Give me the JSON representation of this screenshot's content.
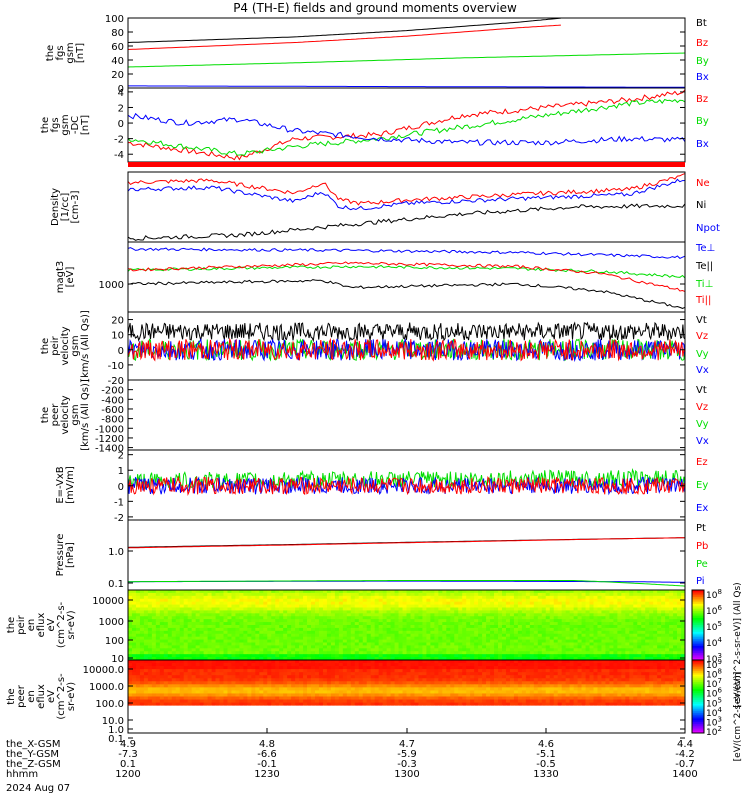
{
  "title": "P4 (TH-E) fields and ground moments overview",
  "colors": {
    "black": "#000000",
    "red": "#ff0000",
    "green": "#00dd00",
    "blue": "#0000ff"
  },
  "chart_data": [
    {
      "type": "line",
      "id": "fgs_gsm",
      "ylabel": [
        "the",
        "fgs",
        "gsm",
        "[nT]"
      ],
      "ylim": [
        0,
        100
      ],
      "yticks": [
        "100",
        "80",
        "60",
        "40",
        "20",
        "0"
      ],
      "legend": [
        "Bt",
        "Bz",
        "By",
        "Bx"
      ],
      "series": [
        {
          "name": "Bt",
          "color": "black",
          "x": [
            0,
            0.3,
            0.5,
            0.7,
            0.78
          ],
          "values": [
            65,
            73,
            82,
            94,
            100
          ]
        },
        {
          "name": "Bz",
          "color": "red",
          "x": [
            0,
            0.3,
            0.5,
            0.7,
            0.78
          ],
          "values": [
            55,
            65,
            74,
            86,
            90
          ]
        },
        {
          "name": "By",
          "color": "green",
          "x": [
            0,
            0.3,
            0.6,
            1.0
          ],
          "values": [
            30,
            36,
            43,
            50
          ]
        },
        {
          "name": "Bx",
          "color": "blue",
          "x": [
            0,
            1.0
          ],
          "values": [
            3,
            1
          ]
        }
      ]
    },
    {
      "type": "line",
      "id": "fgs_gsm_dc",
      "ylabel": [
        "the",
        "fgs",
        "gsm",
        "-DC",
        "[nT]"
      ],
      "ylim": [
        -5,
        4.5
      ],
      "yticks": [
        "4",
        "2",
        "0",
        "-2",
        "-4"
      ],
      "legend": [
        "Bz",
        "By",
        "Bx"
      ],
      "series": [
        {
          "name": "Bz",
          "color": "red",
          "x": [
            0,
            0.15,
            0.2,
            0.3,
            0.45,
            0.6,
            0.75,
            0.9,
            1.0
          ],
          "values": [
            -2.5,
            -4,
            -4.5,
            -2,
            -1.5,
            1,
            2,
            3,
            4
          ]
        },
        {
          "name": "By",
          "color": "green",
          "x": [
            0,
            0.15,
            0.2,
            0.3,
            0.45,
            0.6,
            0.75,
            0.9,
            1.0
          ],
          "values": [
            -2,
            -3.5,
            -4,
            -3,
            -2,
            -0.5,
            1,
            2.5,
            3
          ]
        },
        {
          "name": "Bx",
          "color": "blue",
          "x": [
            0,
            0.1,
            0.2,
            0.3,
            0.45,
            0.6,
            0.75,
            0.9,
            1.0
          ],
          "values": [
            1,
            0,
            0.5,
            -1,
            -2,
            -2.5,
            -2.5,
            -2,
            -2.2
          ]
        }
      ]
    },
    {
      "type": "line",
      "id": "density",
      "ylabel": [
        "Density",
        "[1/cc]",
        "[cm-3]"
      ],
      "yticks": [],
      "legend": [
        "Ne",
        "Ni",
        "Npot"
      ],
      "series": [
        {
          "name": "Ne",
          "color": "red",
          "x": [
            0,
            0.15,
            0.3,
            0.35,
            0.38,
            0.42,
            0.5,
            0.7,
            0.9,
            1.0
          ],
          "values": [
            0.85,
            0.88,
            0.7,
            0.85,
            0.6,
            0.55,
            0.6,
            0.68,
            0.75,
            0.95
          ]
        },
        {
          "name": "Ni",
          "color": "blue",
          "x": [
            0,
            0.15,
            0.3,
            0.35,
            0.38,
            0.42,
            0.5,
            0.7,
            0.9,
            1.0
          ],
          "values": [
            0.75,
            0.78,
            0.58,
            0.72,
            0.5,
            0.48,
            0.55,
            0.62,
            0.68,
            0.9
          ]
        },
        {
          "name": "Npot",
          "color": "black",
          "x": [
            0,
            0.2,
            0.4,
            0.6,
            0.8,
            1.0
          ],
          "values": [
            0.05,
            0.1,
            0.25,
            0.4,
            0.5,
            0.52
          ]
        }
      ]
    },
    {
      "type": "line",
      "id": "temperature",
      "ylabel": [
        "magt3",
        "[eV]"
      ],
      "yticks": [
        "1000"
      ],
      "legend": [
        "Te⊥",
        "Te||",
        "Ti⊥",
        "Ti||"
      ],
      "series": [
        {
          "name": "Te⊥",
          "color": "blue",
          "x": [
            0,
            0.4,
            0.7,
            1.0
          ],
          "values": [
            0.9,
            0.88,
            0.85,
            0.78
          ]
        },
        {
          "name": "Ti⊥",
          "color": "green",
          "x": [
            0,
            0.4,
            0.7,
            0.85,
            1.0
          ],
          "values": [
            0.6,
            0.65,
            0.62,
            0.58,
            0.5
          ]
        },
        {
          "name": "Ti||",
          "color": "red",
          "x": [
            0,
            0.4,
            0.7,
            0.85,
            1.0
          ],
          "values": [
            0.6,
            0.7,
            0.65,
            0.55,
            0.3
          ]
        },
        {
          "name": "Te||",
          "color": "black",
          "x": [
            0,
            0.35,
            0.4,
            0.7,
            0.85,
            1.0
          ],
          "values": [
            0.4,
            0.45,
            0.35,
            0.4,
            0.3,
            0.05
          ]
        }
      ]
    },
    {
      "type": "line",
      "id": "peir_velocity",
      "ylabel": [
        "the",
        "peir",
        "velocity",
        "gsm",
        "[km/s (All Qs)]"
      ],
      "ylim": [
        -20,
        25
      ],
      "yticks": [
        "20",
        "10",
        "0",
        "-10",
        "-20"
      ],
      "legend": [
        "Vt",
        "Vz",
        "Vy",
        "Vx"
      ],
      "series": [
        {
          "name": "Vt",
          "color": "black",
          "x": [
            0,
            1.0
          ],
          "values": [
            12,
            12
          ]
        },
        {
          "name": "Vy",
          "color": "green",
          "x": [
            0,
            1.0
          ],
          "values": [
            0,
            0
          ]
        },
        {
          "name": "Vx",
          "color": "blue",
          "x": [
            0,
            1.0
          ],
          "values": [
            0,
            0
          ]
        },
        {
          "name": "Vz",
          "color": "red",
          "x": [
            0,
            1.0
          ],
          "values": [
            0,
            0
          ]
        }
      ]
    },
    {
      "type": "line",
      "id": "peer_velocity",
      "ylabel": [
        "the",
        "peer",
        "velocity",
        "gsm",
        "[km/s (All Qs)]"
      ],
      "ylim": [
        -1450,
        0
      ],
      "yticks": [
        "-200",
        "-400",
        "-600",
        "-800",
        "-1000",
        "-1200",
        "-1400"
      ],
      "legend": [
        "Vt",
        "Vz",
        "Vy",
        "Vx"
      ],
      "series": []
    },
    {
      "type": "line",
      "id": "e_vxb",
      "ylabel": [
        "E=-VxB",
        "[mV/m]"
      ],
      "ylim": [
        -2.2,
        2.3
      ],
      "yticks": [
        "2",
        "1",
        "0",
        "-1",
        "-2"
      ],
      "legend": [
        "Ez",
        "Ey",
        "Ex"
      ],
      "series": [
        {
          "name": "Ey",
          "color": "green",
          "x": [
            0,
            1.0
          ],
          "values": [
            0.3,
            0.5
          ]
        },
        {
          "name": "Ex",
          "color": "blue",
          "x": [
            0,
            1.0
          ],
          "values": [
            0,
            0
          ]
        },
        {
          "name": "Ez",
          "color": "red",
          "x": [
            0,
            1.0
          ],
          "values": [
            0,
            0
          ]
        }
      ]
    },
    {
      "type": "line",
      "id": "pressure",
      "ylabel": [
        "Pressure",
        "[nPa]"
      ],
      "yticks": [
        "1.0",
        "0.1"
      ],
      "legend": [
        "Pt",
        "Pb",
        "Pe",
        "Pi"
      ],
      "series": [
        {
          "name": "Pt",
          "color": "black",
          "x": [
            0,
            0.3,
            0.6,
            1.0
          ],
          "values": [
            1.3,
            1.6,
            2.0,
            2.6
          ]
        },
        {
          "name": "Pb",
          "color": "red",
          "x": [
            0,
            0.3,
            0.6,
            1.0
          ],
          "values": [
            1.25,
            1.55,
            1.95,
            2.6
          ]
        },
        {
          "name": "Pi",
          "color": "blue",
          "x": [
            0,
            0.5,
            0.9,
            1.0
          ],
          "values": [
            0.11,
            0.115,
            0.11,
            0.105
          ]
        },
        {
          "name": "Pe",
          "color": "green",
          "x": [
            0,
            0.5,
            0.8,
            0.9,
            1.0
          ],
          "values": [
            0.11,
            0.12,
            0.12,
            0.1,
            0.08
          ]
        }
      ]
    },
    {
      "type": "heatmap",
      "id": "peir_en_eflux",
      "ylabel": [
        "the",
        "peir",
        "en",
        "eflux",
        "eV",
        "(cm^2-s-",
        "sr-eV)"
      ],
      "yticks": [
        "10000",
        "1000",
        "100",
        "10"
      ],
      "colorbar_ticks": [
        "10^8",
        "10^6",
        "10^5",
        "10^4",
        "10^3"
      ],
      "colorbar_label": "[eV/(cm^2-s-sr-eV)] (All Qs)"
    },
    {
      "type": "heatmap",
      "id": "peer_en_eflux",
      "ylabel": [
        "the",
        "peer",
        "en",
        "eflux",
        "eV",
        "(cm^2-s-",
        "sr-eV)"
      ],
      "yticks": [
        "10000.0",
        "1000.0",
        "100.0",
        "10.0",
        "1.0",
        "0.1"
      ],
      "colorbar_ticks": [
        "10^9",
        "10^8",
        "10^7",
        "10^6",
        "10^5",
        "10^4",
        "10^3",
        "10^2"
      ],
      "colorbar_label": "[eV/(cm^2-s-sr-eV)]"
    }
  ],
  "xaxis": {
    "rows": [
      {
        "label": "the_X-GSM",
        "values": [
          "4.9",
          "4.8",
          "4.7",
          "4.6",
          "4.4"
        ]
      },
      {
        "label": "the_Y-GSM",
        "values": [
          "-7.3",
          "-6.6",
          "-5.9",
          "-5.1",
          "-4.2"
        ]
      },
      {
        "label": "the_Z-GSM",
        "values": [
          "0.1",
          "-0.1",
          "-0.3",
          "-0.5",
          "-0.7"
        ]
      },
      {
        "label": "hhmm",
        "values": [
          "1200",
          "1230",
          "1300",
          "1330",
          "1400"
        ]
      }
    ],
    "date": "2024 Aug 07"
  }
}
